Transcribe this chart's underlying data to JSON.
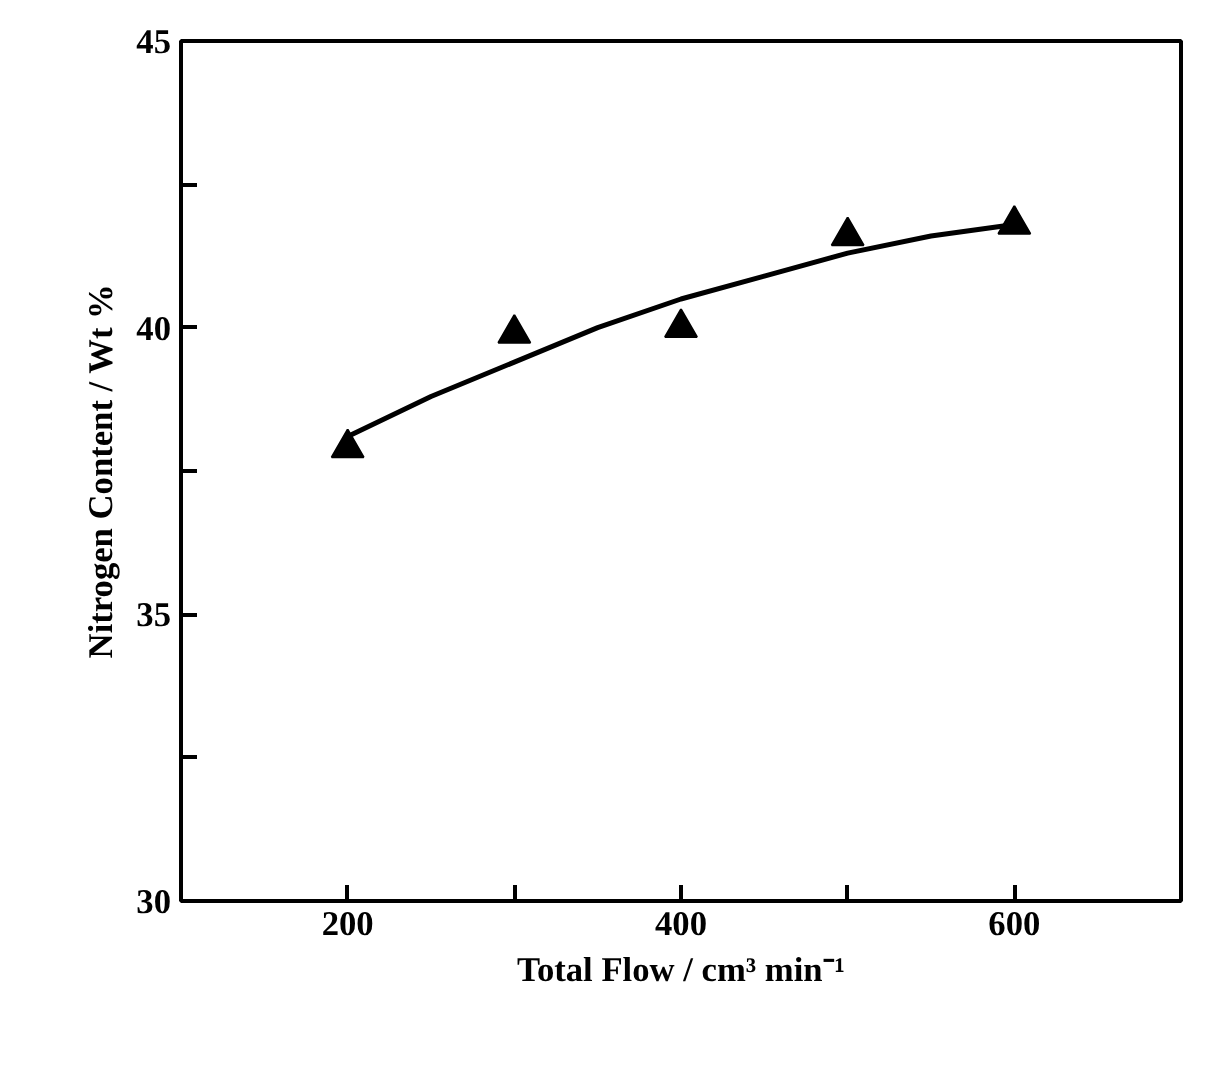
{
  "chart_data": {
    "type": "scatter",
    "xlabel": "Total Flow / cm³ min⁻¹",
    "ylabel": "Nitrogen Content / Wt %",
    "xlim": [
      100,
      700
    ],
    "ylim": [
      30,
      45
    ],
    "xticks": [
      200,
      {
        "value": 300,
        "label": null
      },
      400,
      {
        "value": 500,
        "label": null
      },
      600
    ],
    "yticks": [
      30,
      {
        "value": 32.5,
        "label": null
      },
      35,
      {
        "value": 37.5,
        "label": null
      },
      40,
      {
        "value": 42.5,
        "label": null
      },
      45
    ],
    "grid": false,
    "marker": "triangle",
    "series": [
      {
        "color": "#000000",
        "x": [
          200,
          300,
          400,
          500,
          600
        ],
        "values": [
          37.9,
          39.9,
          40.0,
          41.6,
          41.8
        ]
      },
      {
        "type": "line",
        "color": "#000000",
        "marker": "none",
        "x": [
          200,
          250,
          300,
          350,
          400,
          450,
          500,
          550,
          600
        ],
        "values": [
          38.1,
          38.8,
          39.4,
          40.0,
          40.5,
          40.9,
          41.3,
          41.6,
          41.8
        ]
      }
    ]
  }
}
